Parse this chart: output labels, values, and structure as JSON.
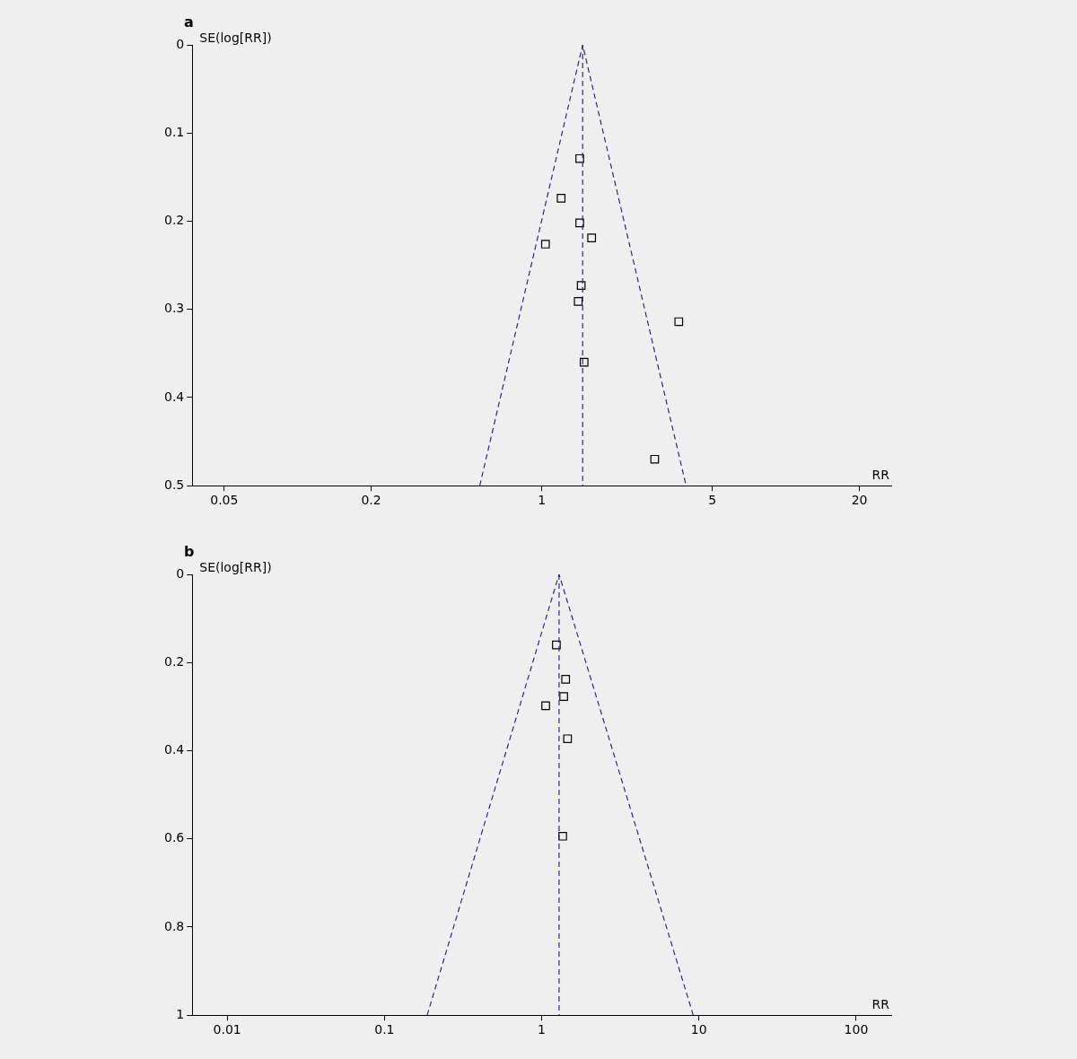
{
  "chart_data": [
    {
      "type": "scatter",
      "title": "a",
      "xlabel": "RR",
      "ylabel": "SE(log[RR])",
      "log": "x",
      "xlim": [
        0.037,
        27
      ],
      "xticks": [
        0.05,
        0.2,
        1,
        5,
        20
      ],
      "ylim": [
        0.5,
        0
      ],
      "yticks": [
        0,
        0.1,
        0.2,
        0.3,
        0.4,
        0.5
      ],
      "grid": false,
      "legend": false,
      "marker": "square",
      "series": [
        {
          "type": "line",
          "color": "#2b2b7a",
          "line_style": "dashed",
          "marker": "none",
          "x": [
            0.557,
            1.47,
            3.9
          ],
          "values": [
            0.5,
            0,
            0.5
          ]
        },
        {
          "type": "line",
          "color": "#2b2b7a",
          "line_style": "dashed",
          "marker": "none",
          "x": [
            1.47,
            1.47
          ],
          "values": [
            0,
            0.5
          ]
        },
        {
          "color": "#000000",
          "x": [
            1.43,
            1.2,
            1.43,
            1.6,
            1.035,
            1.45,
            1.41,
            3.64,
            1.49,
            2.9
          ],
          "values": [
            0.129,
            0.174,
            0.202,
            0.219,
            0.226,
            0.273,
            0.291,
            0.314,
            0.36,
            0.47
          ]
        }
      ]
    },
    {
      "type": "scatter",
      "title": "b",
      "xlabel": "RR",
      "ylabel": "SE(log[RR])",
      "log": "x",
      "xlim": [
        0.006,
        167
      ],
      "xticks": [
        0.01,
        0.1,
        1,
        10,
        100
      ],
      "ylim": [
        1,
        0
      ],
      "yticks": [
        0,
        0.2,
        0.4,
        0.6,
        0.8,
        1
      ],
      "grid": false,
      "legend": false,
      "marker": "square",
      "series": [
        {
          "type": "line",
          "color": "#2b2b7a",
          "line_style": "dashed",
          "marker": "none",
          "x": [
            0.187,
            1.29,
            9.2
          ],
          "values": [
            1,
            0,
            1
          ]
        },
        {
          "type": "line",
          "color": "#2b2b7a",
          "line_style": "dashed",
          "marker": "none",
          "x": [
            1.29,
            1.29
          ],
          "values": [
            0,
            1
          ]
        },
        {
          "color": "#000000",
          "x": [
            1.24,
            1.42,
            1.38,
            1.06,
            1.46,
            1.36
          ],
          "values": [
            0.16,
            0.238,
            0.277,
            0.298,
            0.373,
            0.594
          ]
        }
      ]
    }
  ]
}
